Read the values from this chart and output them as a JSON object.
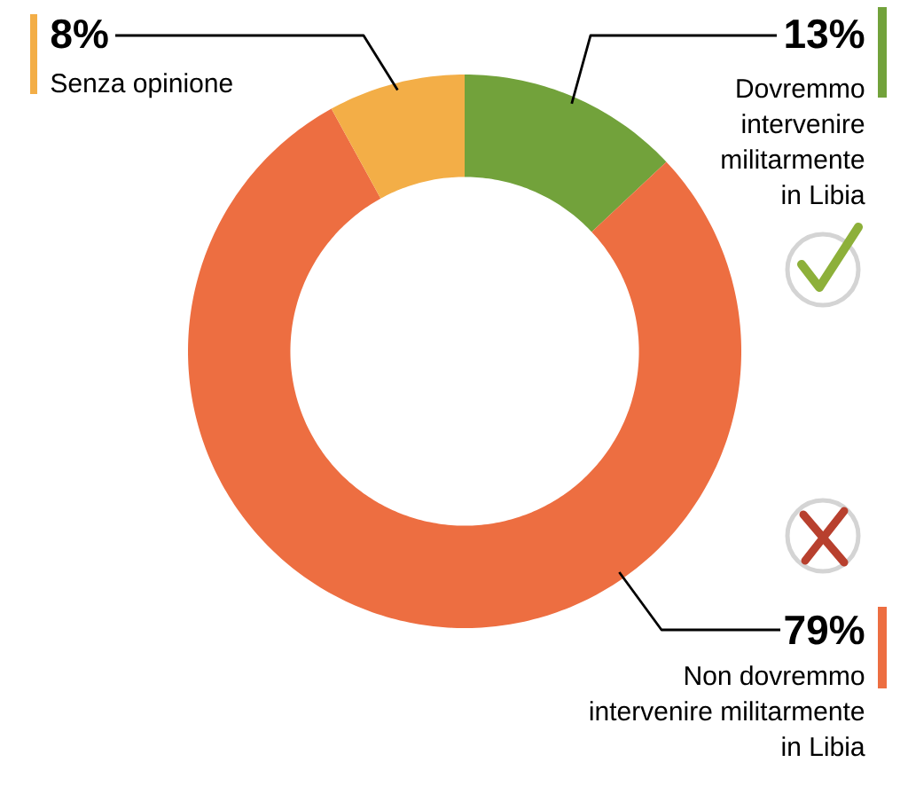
{
  "chart_data": {
    "type": "donut",
    "categories": [
      "Dovremmo intervenire militarmente in Libia",
      "Non dovremmo intervenire militarmente in Libia",
      "Senza opinione"
    ],
    "values": [
      13,
      79,
      8
    ],
    "colors": [
      "#72a23b",
      "#ed6e41",
      "#f3ae47"
    ],
    "value_labels": [
      "13%",
      "79%",
      "8%"
    ],
    "legend": "right"
  }
}
